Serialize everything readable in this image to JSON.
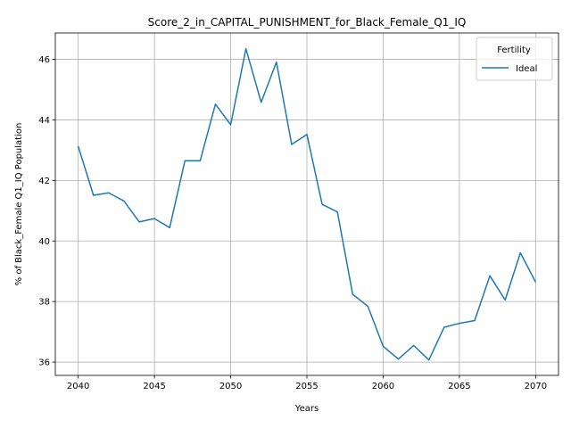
{
  "chart_data": {
    "type": "line",
    "title": "Score_2_in_CAPITAL_PUNISHMENT_for_Black_Female_Q1_IQ",
    "xlabel": "Years",
    "ylabel": "% of Black_Female Q1_IQ Population",
    "xlim": [
      2038.5,
      2071.5
    ],
    "ylim": [
      35.56,
      46.87
    ],
    "xticks": [
      2040,
      2045,
      2050,
      2055,
      2060,
      2065,
      2070
    ],
    "yticks": [
      36,
      38,
      40,
      42,
      44,
      46
    ],
    "grid": true,
    "legend": {
      "title": "Fertility",
      "position": "upper right"
    },
    "series": [
      {
        "name": "Ideal",
        "color": "#1f77b4",
        "x": [
          2040,
          2041,
          2042,
          2043,
          2044,
          2045,
          2046,
          2047,
          2048,
          2049,
          2050,
          2051,
          2052,
          2053,
          2054,
          2055,
          2056,
          2057,
          2058,
          2059,
          2060,
          2061,
          2062,
          2063,
          2064,
          2065,
          2066,
          2067,
          2068,
          2069,
          2070
        ],
        "y": [
          43.13,
          41.51,
          41.59,
          41.32,
          40.63,
          40.74,
          40.44,
          42.65,
          42.65,
          44.52,
          43.84,
          46.35,
          44.58,
          45.91,
          43.19,
          43.52,
          41.21,
          40.96,
          38.24,
          37.84,
          36.52,
          36.1,
          36.55,
          36.07,
          37.15,
          37.28,
          37.37,
          38.85,
          38.05,
          39.61,
          38.64
        ]
      }
    ]
  }
}
